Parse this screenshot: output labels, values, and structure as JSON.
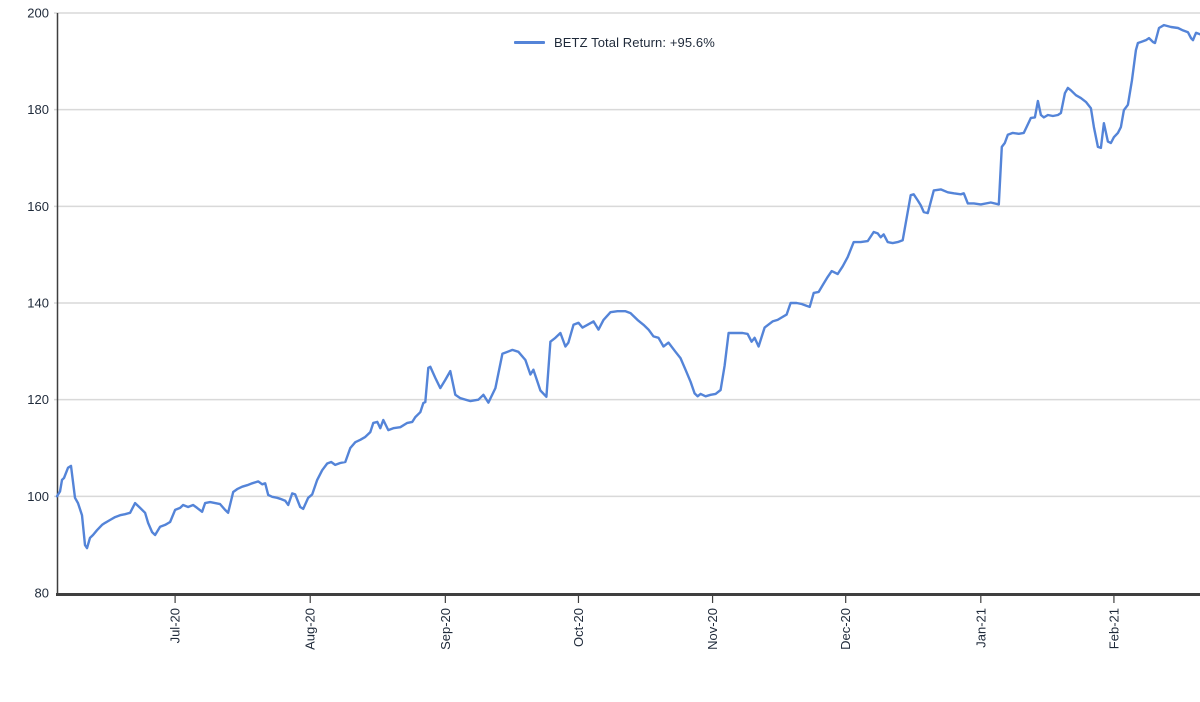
{
  "chart_data": {
    "type": "line",
    "title": "",
    "legend": {
      "label": "BETZ Total Return: +95.6%",
      "position": "top-center"
    },
    "x_range": [
      0,
      1142
    ],
    "y_range": [
      80,
      200
    ],
    "y_ticks": [
      80,
      100,
      120,
      140,
      160,
      180,
      200
    ],
    "x_ticks": [
      {
        "label": "Jul-20",
        "x": 118
      },
      {
        "label": "Aug-20",
        "x": 253
      },
      {
        "label": "Sep-20",
        "x": 388
      },
      {
        "label": "Oct-20",
        "x": 521
      },
      {
        "label": "Nov-20",
        "x": 655
      },
      {
        "label": "Dec-20",
        "x": 788
      },
      {
        "label": "Jan-21",
        "x": 923
      },
      {
        "label": "Feb-21",
        "x": 1056
      }
    ],
    "grid": "horizontal",
    "colors": {
      "grid": "#d9d9d9",
      "axis": "#3f3f3f",
      "label": "#1f2a3a",
      "background": "#ffffff"
    },
    "series": [
      {
        "name": "BETZ Total Return",
        "final_return_pct": "+95.6%",
        "start_value": 100,
        "end_value": 195.6,
        "color": "#5484d8",
        "points": [
          [
            0,
            100
          ],
          [
            3,
            101
          ],
          [
            5,
            103.4
          ],
          [
            7,
            103.8
          ],
          [
            11,
            105.9
          ],
          [
            14,
            106.3
          ],
          [
            18,
            99.7
          ],
          [
            21,
            98.6
          ],
          [
            25,
            96.1
          ],
          [
            28,
            89.9
          ],
          [
            30,
            89.3
          ],
          [
            33,
            91.4
          ],
          [
            36,
            92
          ],
          [
            40,
            93
          ],
          [
            45,
            94.1
          ],
          [
            48,
            94.5
          ],
          [
            53,
            95.1
          ],
          [
            58,
            95.7
          ],
          [
            63,
            96.1
          ],
          [
            68,
            96.3
          ],
          [
            73,
            96.6
          ],
          [
            78,
            98.6
          ],
          [
            83,
            97.6
          ],
          [
            88,
            96.6
          ],
          [
            91,
            94.5
          ],
          [
            95,
            92.6
          ],
          [
            98,
            92
          ],
          [
            103,
            93.7
          ],
          [
            108,
            94.1
          ],
          [
            113,
            94.7
          ],
          [
            118,
            97.2
          ],
          [
            123,
            97.6
          ],
          [
            126,
            98.2
          ],
          [
            131,
            97.8
          ],
          [
            136,
            98.2
          ],
          [
            140,
            97.6
          ],
          [
            145,
            96.8
          ],
          [
            148,
            98.6
          ],
          [
            153,
            98.8
          ],
          [
            158,
            98.6
          ],
          [
            163,
            98.4
          ],
          [
            168,
            97.2
          ],
          [
            171,
            96.6
          ],
          [
            176,
            100.9
          ],
          [
            180,
            101.5
          ],
          [
            185,
            102
          ],
          [
            190,
            102.3
          ],
          [
            195,
            102.7
          ],
          [
            201,
            103.1
          ],
          [
            205,
            102.5
          ],
          [
            208,
            102.7
          ],
          [
            211,
            100.3
          ],
          [
            215,
            99.9
          ],
          [
            220,
            99.7
          ],
          [
            223,
            99.5
          ],
          [
            228,
            99.1
          ],
          [
            231,
            98.2
          ],
          [
            235,
            100.6
          ],
          [
            238,
            100.4
          ],
          [
            243,
            97.8
          ],
          [
            246,
            97.4
          ],
          [
            251,
            99.7
          ],
          [
            255,
            100.4
          ],
          [
            260,
            103.4
          ],
          [
            265,
            105.4
          ],
          [
            270,
            106.8
          ],
          [
            274,
            107.1
          ],
          [
            278,
            106.5
          ],
          [
            283,
            106.9
          ],
          [
            288,
            107.1
          ],
          [
            293,
            110
          ],
          [
            298,
            111.2
          ],
          [
            303,
            111.7
          ],
          [
            308,
            112.3
          ],
          [
            313,
            113.3
          ],
          [
            316,
            115.2
          ],
          [
            320,
            115.4
          ],
          [
            323,
            114.1
          ],
          [
            326,
            115.8
          ],
          [
            331,
            113.7
          ],
          [
            336,
            114.1
          ],
          [
            343,
            114.3
          ],
          [
            350,
            115.2
          ],
          [
            355,
            115.4
          ],
          [
            358,
            116.4
          ],
          [
            363,
            117.4
          ],
          [
            366,
            119.3
          ],
          [
            368,
            119.5
          ],
          [
            371,
            126.6
          ],
          [
            373,
            126.8
          ],
          [
            378,
            124.5
          ],
          [
            383,
            122.4
          ],
          [
            388,
            124.1
          ],
          [
            393,
            125.9
          ],
          [
            398,
            121
          ],
          [
            403,
            120.3
          ],
          [
            413,
            119.7
          ],
          [
            421,
            120
          ],
          [
            426,
            121
          ],
          [
            431,
            119.4
          ],
          [
            438,
            122.4
          ],
          [
            445,
            129.5
          ],
          [
            455,
            130.3
          ],
          [
            461,
            129.9
          ],
          [
            468,
            128.2
          ],
          [
            473,
            125.2
          ],
          [
            476,
            126.2
          ],
          [
            483,
            121.9
          ],
          [
            489,
            120.6
          ],
          [
            493,
            132
          ],
          [
            498,
            132.8
          ],
          [
            503,
            133.8
          ],
          [
            508,
            131
          ],
          [
            511,
            131.8
          ],
          [
            516,
            135.5
          ],
          [
            521,
            135.9
          ],
          [
            525,
            134.9
          ],
          [
            530,
            135.5
          ],
          [
            536,
            136.2
          ],
          [
            541,
            134.5
          ],
          [
            546,
            136.5
          ],
          [
            553,
            138.1
          ],
          [
            560,
            138.3
          ],
          [
            568,
            138.3
          ],
          [
            573,
            137.9
          ],
          [
            580,
            136.5
          ],
          [
            586,
            135.5
          ],
          [
            591,
            134.5
          ],
          [
            596,
            133.1
          ],
          [
            601,
            132.8
          ],
          [
            606,
            131
          ],
          [
            611,
            131.8
          ],
          [
            618,
            129.9
          ],
          [
            623,
            128.6
          ],
          [
            628,
            126.2
          ],
          [
            633,
            123.7
          ],
          [
            637,
            121.3
          ],
          [
            640,
            120.7
          ],
          [
            643,
            121.2
          ],
          [
            648,
            120.7
          ],
          [
            653,
            121
          ],
          [
            658,
            121.2
          ],
          [
            663,
            122
          ],
          [
            667,
            127
          ],
          [
            671,
            133.8
          ],
          [
            677,
            133.8
          ],
          [
            685,
            133.8
          ],
          [
            690,
            133.6
          ],
          [
            694,
            132
          ],
          [
            697,
            132.8
          ],
          [
            701,
            131
          ],
          [
            707,
            134.9
          ],
          [
            715,
            136.2
          ],
          [
            720,
            136.5
          ],
          [
            724,
            137
          ],
          [
            729,
            137.6
          ],
          [
            733,
            140
          ],
          [
            739,
            140
          ],
          [
            744,
            139.8
          ],
          [
            749,
            139.4
          ],
          [
            752,
            139.2
          ],
          [
            756,
            142.1
          ],
          [
            761,
            142.3
          ],
          [
            765,
            143.7
          ],
          [
            770,
            145.4
          ],
          [
            774,
            146.6
          ],
          [
            780,
            146
          ],
          [
            785,
            147.6
          ],
          [
            790,
            149.5
          ],
          [
            796,
            152.6
          ],
          [
            803,
            152.6
          ],
          [
            810,
            152.8
          ],
          [
            816,
            154.7
          ],
          [
            820,
            154.4
          ],
          [
            823,
            153.6
          ],
          [
            826,
            154.2
          ],
          [
            830,
            152.6
          ],
          [
            835,
            152.4
          ],
          [
            840,
            152.6
          ],
          [
            845,
            153
          ],
          [
            853,
            162.3
          ],
          [
            856,
            162.5
          ],
          [
            860,
            161.2
          ],
          [
            863,
            160.2
          ],
          [
            866,
            158.8
          ],
          [
            870,
            158.6
          ],
          [
            876,
            163.3
          ],
          [
            883,
            163.5
          ],
          [
            890,
            162.9
          ],
          [
            896,
            162.7
          ],
          [
            903,
            162.5
          ],
          [
            906,
            162.7
          ],
          [
            910,
            160.6
          ],
          [
            916,
            160.6
          ],
          [
            923,
            160.4
          ],
          [
            933,
            160.8
          ],
          [
            941,
            160.4
          ],
          [
            944,
            172.3
          ],
          [
            947,
            173.1
          ],
          [
            950,
            174.8
          ],
          [
            955,
            175.2
          ],
          [
            961,
            175
          ],
          [
            966,
            175.2
          ],
          [
            973,
            178.3
          ],
          [
            977,
            178.4
          ],
          [
            980,
            181.8
          ],
          [
            983,
            178.9
          ],
          [
            986,
            178.4
          ],
          [
            990,
            178.9
          ],
          [
            995,
            178.7
          ],
          [
            1000,
            178.9
          ],
          [
            1003,
            179.3
          ],
          [
            1007,
            183.4
          ],
          [
            1010,
            184.5
          ],
          [
            1013,
            184
          ],
          [
            1018,
            183
          ],
          [
            1023,
            182.4
          ],
          [
            1028,
            181.6
          ],
          [
            1033,
            180.3
          ],
          [
            1036,
            176.4
          ],
          [
            1040,
            172.3
          ],
          [
            1043,
            172.1
          ],
          [
            1046,
            177.2
          ],
          [
            1050,
            173.4
          ],
          [
            1053,
            173.1
          ],
          [
            1056,
            174.3
          ],
          [
            1060,
            175.2
          ],
          [
            1063,
            176.4
          ],
          [
            1066,
            179.9
          ],
          [
            1070,
            181
          ],
          [
            1074,
            186
          ],
          [
            1078,
            192.3
          ],
          [
            1080,
            193.8
          ],
          [
            1083,
            194
          ],
          [
            1088,
            194.4
          ],
          [
            1091,
            194.8
          ],
          [
            1095,
            194
          ],
          [
            1097,
            193.8
          ],
          [
            1101,
            196.9
          ],
          [
            1106,
            197.5
          ],
          [
            1113,
            197.1
          ],
          [
            1120,
            196.9
          ],
          [
            1125,
            196.4
          ],
          [
            1130,
            196
          ],
          [
            1133,
            194.8
          ],
          [
            1135,
            194.4
          ],
          [
            1138,
            195.9
          ],
          [
            1142,
            195.6
          ]
        ]
      }
    ]
  }
}
